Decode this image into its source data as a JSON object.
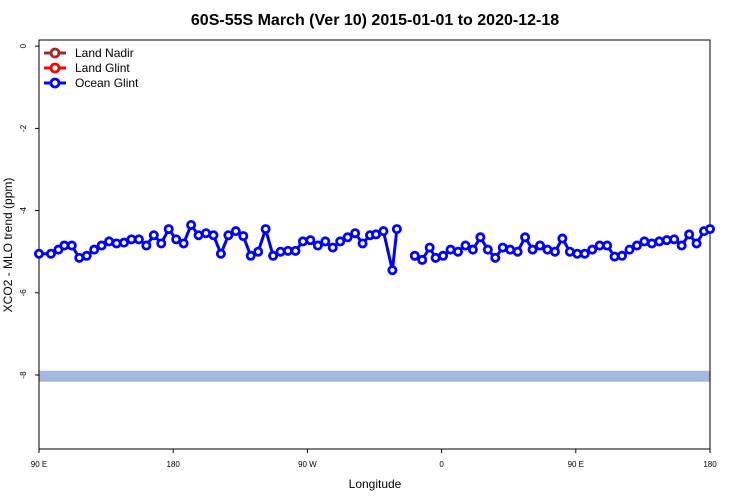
{
  "chart_data": {
    "type": "line",
    "title": "60S-55S March (Ver 10)   2015-01-01 to 2020-12-18",
    "xlabel": "Longitude",
    "ylabel": "XCO2 - MLO trend (ppm)",
    "x_ticks": [
      {
        "value": 90,
        "label": "90 E"
      },
      {
        "value": 180,
        "label": "180"
      },
      {
        "value": 270,
        "label": "90 W"
      },
      {
        "value": 360,
        "label": "0"
      },
      {
        "value": 450,
        "label": "90 E"
      },
      {
        "value": 540,
        "label": "180"
      }
    ],
    "y_ticks": [
      {
        "value": 0,
        "label": "0"
      },
      {
        "value": -2,
        "label": "-2"
      },
      {
        "value": -4,
        "label": "-4"
      },
      {
        "value": -6,
        "label": "-6"
      },
      {
        "value": -8,
        "label": "-8"
      }
    ],
    "xlim": [
      90,
      540
    ],
    "ylim": [
      -9.8,
      0.15
    ],
    "legend": {
      "position": "top-left",
      "entries": [
        {
          "name": "Land Nadir",
          "color": "#a52a2a"
        },
        {
          "name": "Land Glint",
          "color": "#ff0000"
        },
        {
          "name": "Ocean Glint",
          "color": "#0000ff"
        }
      ]
    },
    "reference_band": {
      "value": -8.03,
      "color": "#a4b9dc"
    },
    "series": [
      {
        "name": "Ocean Glint",
        "color": "#0000ff",
        "segments": [
          [
            [
              90,
              -5.05
            ],
            [
              98,
              -5.05
            ],
            [
              103,
              -4.95
            ],
            [
              107,
              -4.85
            ],
            [
              112,
              -4.85
            ],
            [
              117,
              -5.15
            ],
            [
              122,
              -5.1
            ],
            [
              127,
              -4.95
            ],
            [
              132,
              -4.85
            ],
            [
              137,
              -4.75
            ],
            [
              142,
              -4.8
            ],
            [
              147,
              -4.78
            ],
            [
              152,
              -4.7
            ],
            [
              157,
              -4.7
            ],
            [
              162,
              -4.85
            ],
            [
              167,
              -4.6
            ],
            [
              172,
              -4.8
            ],
            [
              177,
              -4.45
            ],
            [
              182,
              -4.7
            ],
            [
              187,
              -4.8
            ],
            [
              192,
              -4.35
            ],
            [
              197,
              -4.6
            ],
            [
              202,
              -4.55
            ],
            [
              207,
              -4.6
            ],
            [
              212,
              -5.05
            ],
            [
              217,
              -4.6
            ],
            [
              222,
              -4.5
            ],
            [
              227,
              -4.62
            ],
            [
              232,
              -5.1
            ],
            [
              237,
              -5.0
            ],
            [
              242,
              -4.45
            ],
            [
              247,
              -5.1
            ],
            [
              252,
              -5.0
            ],
            [
              257,
              -4.98
            ],
            [
              262,
              -4.98
            ],
            [
              267,
              -4.75
            ],
            [
              272,
              -4.72
            ],
            [
              277,
              -4.85
            ],
            [
              282,
              -4.75
            ],
            [
              287,
              -4.9
            ],
            [
              292,
              -4.75
            ],
            [
              297,
              -4.65
            ],
            [
              302,
              -4.55
            ],
            [
              307,
              -4.8
            ],
            [
              312,
              -4.6
            ],
            [
              316,
              -4.58
            ],
            [
              321,
              -4.5
            ],
            [
              327,
              -5.45
            ],
            [
              330,
              -4.45
            ]
          ],
          [
            [
              342,
              -5.1
            ],
            [
              347,
              -5.2
            ],
            [
              352,
              -4.9
            ],
            [
              356,
              -5.15
            ],
            [
              361,
              -5.1
            ],
            [
              366,
              -4.95
            ],
            [
              371,
              -5.0
            ],
            [
              376,
              -4.85
            ],
            [
              381,
              -4.95
            ],
            [
              386,
              -4.65
            ],
            [
              391,
              -4.95
            ],
            [
              396,
              -5.15
            ],
            [
              401,
              -4.9
            ],
            [
              406,
              -4.95
            ],
            [
              411,
              -5.0
            ],
            [
              416,
              -4.65
            ],
            [
              421,
              -4.95
            ],
            [
              426,
              -4.85
            ],
            [
              431,
              -4.95
            ],
            [
              436,
              -5.0
            ],
            [
              441,
              -4.68
            ],
            [
              446,
              -5.0
            ],
            [
              451,
              -5.05
            ],
            [
              456,
              -5.05
            ],
            [
              461,
              -4.95
            ],
            [
              466,
              -4.85
            ],
            [
              471,
              -4.85
            ],
            [
              476,
              -5.12
            ],
            [
              481,
              -5.1
            ],
            [
              486,
              -4.95
            ],
            [
              491,
              -4.85
            ],
            [
              496,
              -4.75
            ],
            [
              501,
              -4.8
            ],
            [
              506,
              -4.75
            ],
            [
              511,
              -4.72
            ],
            [
              516,
              -4.7
            ],
            [
              521,
              -4.85
            ],
            [
              526,
              -4.58
            ],
            [
              531,
              -4.8
            ],
            [
              536,
              -4.5
            ],
            [
              540,
              -4.45
            ]
          ]
        ]
      }
    ]
  }
}
